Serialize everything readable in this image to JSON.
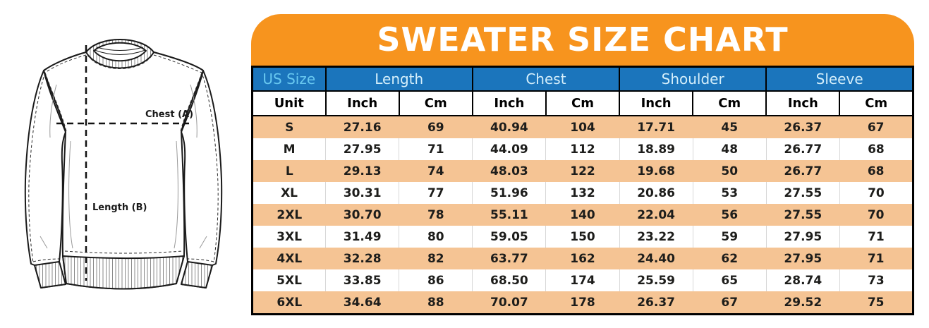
{
  "title": "SWEATER SIZE CHART",
  "diagram": {
    "chest_label": "Chest (A)",
    "length_label": "Length (B)"
  },
  "chart_data": {
    "type": "table",
    "title": "SWEATER SIZE CHART",
    "column_groups": [
      {
        "label": "US Size",
        "span": 1
      },
      {
        "label": "Length",
        "span": 2
      },
      {
        "label": "Chest",
        "span": 2
      },
      {
        "label": "Shoulder",
        "span": 2
      },
      {
        "label": "Sleeve",
        "span": 2
      }
    ],
    "unit_row": [
      "Unit",
      "Inch",
      "Cm",
      "Inch",
      "Cm",
      "Inch",
      "Cm",
      "Inch",
      "Cm"
    ],
    "rows": [
      [
        "S",
        "27.16",
        "69",
        "40.94",
        "104",
        "17.71",
        "45",
        "26.37",
        "67"
      ],
      [
        "M",
        "27.95",
        "71",
        "44.09",
        "112",
        "18.89",
        "48",
        "26.77",
        "68"
      ],
      [
        "L",
        "29.13",
        "74",
        "48.03",
        "122",
        "19.68",
        "50",
        "26.77",
        "68"
      ],
      [
        "XL",
        "30.31",
        "77",
        "51.96",
        "132",
        "20.86",
        "53",
        "27.55",
        "70"
      ],
      [
        "2XL",
        "30.70",
        "78",
        "55.11",
        "140",
        "22.04",
        "56",
        "27.55",
        "70"
      ],
      [
        "3XL",
        "31.49",
        "80",
        "59.05",
        "150",
        "23.22",
        "59",
        "27.95",
        "71"
      ],
      [
        "4XL",
        "32.28",
        "82",
        "63.77",
        "162",
        "24.40",
        "62",
        "27.95",
        "71"
      ],
      [
        "5XL",
        "33.85",
        "86",
        "68.50",
        "174",
        "25.59",
        "65",
        "28.74",
        "73"
      ],
      [
        "6XL",
        "34.64",
        "88",
        "70.07",
        "178",
        "26.37",
        "67",
        "29.52",
        "75"
      ]
    ]
  },
  "colors": {
    "banner_orange": "#F7941E",
    "header_blue": "#1B75BC",
    "row_peach": "#F5C494",
    "header_text_light": "#D5EFFB",
    "us_size_text": "#68C8F0",
    "data_text": "#1D1D1B",
    "line_art": "#1A1A1A"
  }
}
